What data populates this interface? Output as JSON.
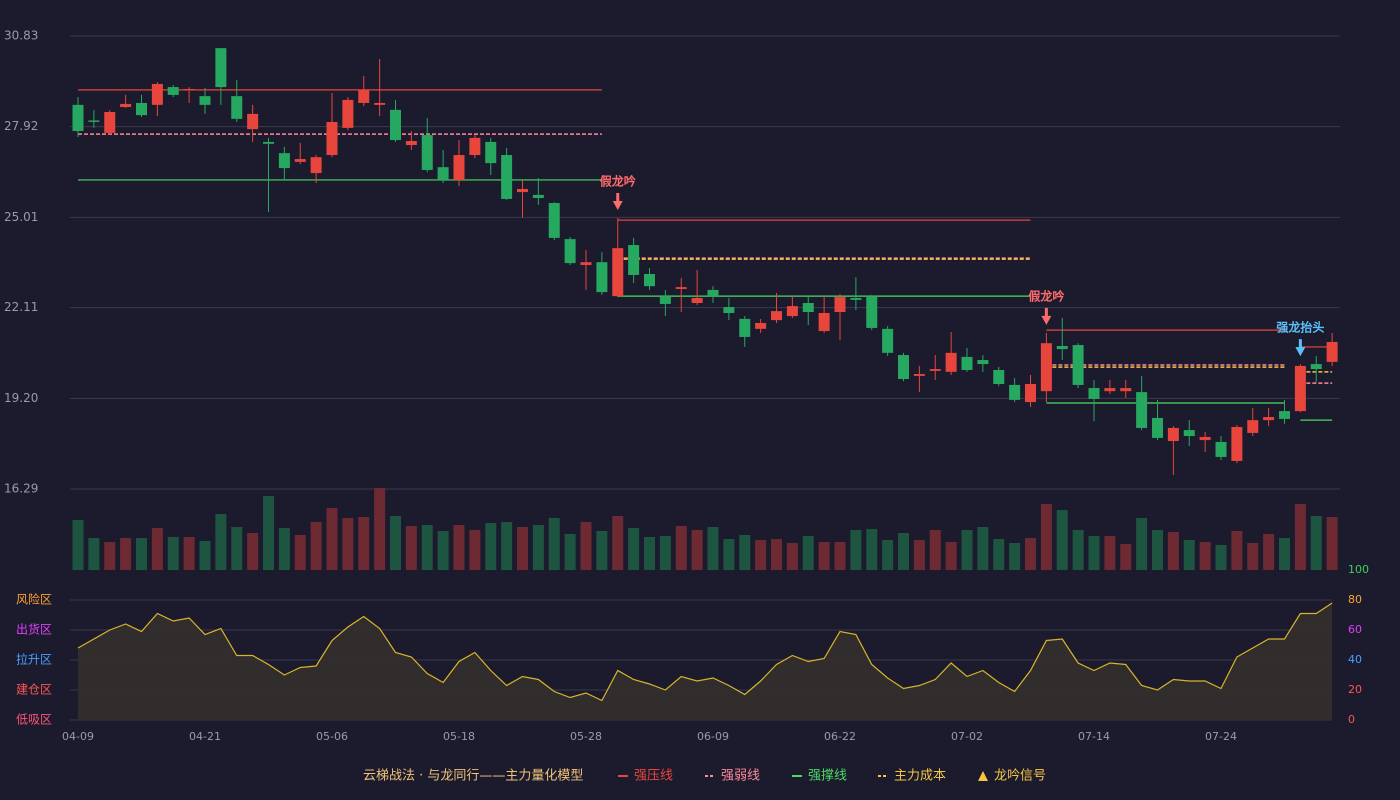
{
  "chart_data": {
    "type": "candlestick",
    "title": "云梯战法 · 与龙同行——主力量化模型",
    "categories": [
      "04-09",
      null,
      null,
      null,
      null,
      null,
      null,
      null,
      "04-21",
      null,
      null,
      null,
      null,
      null,
      null,
      null,
      "05-06",
      null,
      null,
      null,
      null,
      null,
      null,
      null,
      "05-18",
      null,
      null,
      null,
      null,
      null,
      null,
      null,
      "05-28",
      null,
      null,
      null,
      null,
      null,
      null,
      null,
      "06-09",
      null,
      null,
      null,
      null,
      null,
      null,
      null,
      "06-22",
      null,
      null,
      null,
      null,
      null,
      null,
      null,
      "07-02",
      null,
      null,
      null,
      null,
      null,
      null,
      null,
      "07-14",
      null,
      null,
      null,
      null,
      null,
      null,
      null,
      "07-24",
      null,
      null,
      null,
      null,
      null,
      null,
      null
    ],
    "ylim": [
      16.29,
      30.83
    ],
    "yticks": [
      30.83,
      27.92,
      25.01,
      22.11,
      {
        "value": 19.2,
        "label": "19.20"
      },
      16.29
    ],
    "grid": true,
    "up_color": "#e8453c",
    "down_color": "#27a861",
    "open": [
      28.62,
      28.12,
      27.72,
      28.55,
      28.68,
      28.62,
      29.19,
      29.09,
      28.9,
      30.44,
      28.9,
      27.84,
      27.43,
      27.07,
      26.79,
      26.43,
      27.01,
      27.88,
      28.68,
      28.62,
      28.46,
      27.33,
      27.65,
      26.62,
      26.21,
      27.01,
      27.43,
      27.01,
      25.82,
      25.73,
      25.47,
      24.31,
      23.48,
      23.57,
      22.48,
      24.12,
      23.19,
      22.48,
      22.71,
      22.26,
      22.68,
      22.13,
      21.75,
      21.43,
      21.71,
      21.84,
      22.26,
      21.36,
      21.97,
      22.42,
      22.48,
      21.43,
      20.59,
      19.92,
      20.08,
      20.05,
      20.53,
      20.43,
      20.11,
      19.63,
      19.08,
      19.43,
      20.88,
      20.91,
      19.53,
      19.43,
      19.43,
      19.4,
      18.57,
      17.83,
      18.18,
      17.86,
      17.8,
      17.19,
      18.09,
      18.5,
      18.79,
      18.79,
      20.3,
      20.37
    ],
    "high": [
      28.87,
      28.45,
      28.45,
      28.94,
      28.94,
      29.35,
      29.26,
      29.19,
      29.16,
      30.44,
      29.42,
      28.62,
      27.56,
      27.27,
      27.4,
      27.01,
      29.0,
      28.87,
      29.55,
      30.09,
      28.78,
      27.78,
      28.2,
      27.17,
      27.49,
      27.65,
      27.56,
      27.24,
      26.21,
      26.27,
      25.5,
      24.38,
      23.96,
      23.89,
      24.99,
      24.35,
      23.38,
      22.68,
      23.06,
      23.32,
      22.8,
      22.42,
      21.84,
      21.75,
      22.58,
      22.48,
      22.48,
      22.48,
      22.55,
      23.09,
      22.52,
      21.52,
      20.66,
      20.24,
      20.59,
      21.33,
      20.82,
      20.59,
      20.21,
      19.85,
      19.95,
      21.3,
      21.78,
      20.97,
      19.79,
      19.79,
      19.79,
      19.92,
      19.15,
      18.31,
      18.5,
      18.12,
      17.99,
      18.34,
      18.89,
      18.89,
      19.15,
      20.3,
      20.56,
      21.3
    ],
    "low": [
      27.59,
      27.88,
      27.65,
      28.52,
      28.23,
      28.26,
      28.87,
      28.68,
      28.33,
      28.62,
      28.07,
      27.43,
      25.18,
      26.21,
      26.72,
      26.11,
      26.94,
      27.81,
      28.58,
      28.26,
      27.43,
      27.17,
      26.46,
      26.11,
      26.01,
      26.91,
      26.37,
      25.57,
      25.0,
      25.41,
      24.28,
      23.48,
      22.68,
      22.52,
      22.45,
      22.9,
      22.68,
      21.84,
      21.97,
      22.19,
      22.26,
      21.71,
      20.85,
      21.3,
      21.62,
      21.78,
      21.55,
      21.3,
      21.07,
      22.03,
      21.39,
      20.56,
      19.75,
      19.4,
      19.79,
      19.95,
      20.05,
      20.05,
      19.59,
      19.08,
      18.92,
      19.08,
      20.43,
      19.53,
      18.47,
      19.34,
      19.21,
      18.18,
      17.86,
      16.74,
      17.67,
      17.48,
      17.22,
      17.12,
      17.99,
      18.31,
      18.38,
      18.76,
      19.72,
      20.24
    ],
    "close": [
      27.78,
      28.08,
      28.39,
      28.65,
      28.29,
      29.29,
      28.94,
      29.13,
      28.62,
      29.19,
      28.17,
      28.33,
      27.37,
      26.59,
      26.88,
      26.94,
      28.07,
      28.78,
      29.1,
      28.68,
      27.49,
      27.46,
      26.53,
      26.21,
      27.01,
      27.56,
      26.75,
      25.6,
      25.92,
      25.63,
      24.35,
      23.54,
      23.57,
      22.61,
      24.02,
      23.16,
      22.8,
      22.23,
      22.77,
      22.42,
      22.48,
      21.94,
      21.17,
      21.62,
      22.0,
      22.16,
      21.97,
      21.94,
      22.45,
      22.36,
      21.46,
      20.66,
      19.82,
      19.98,
      20.14,
      20.66,
      20.11,
      20.3,
      19.66,
      19.15,
      19.66,
      20.97,
      20.78,
      19.63,
      19.18,
      19.53,
      19.53,
      18.25,
      17.93,
      18.25,
      17.99,
      17.96,
      17.32,
      18.28,
      18.5,
      18.6,
      18.54,
      20.24,
      20.14,
      21.01
    ],
    "volume": {
      "up_color": "#6e2a33",
      "down_color": "#1d5540",
      "values": [
        50,
        32,
        28,
        32,
        32,
        42,
        33,
        33,
        29,
        56,
        43,
        37,
        74,
        42,
        35,
        48,
        62,
        52,
        53,
        82,
        54,
        44,
        45,
        39,
        45,
        40,
        47,
        48,
        43,
        45,
        52,
        36,
        48,
        39,
        54,
        42,
        33,
        34,
        44,
        40,
        43,
        31,
        35,
        30,
        31,
        27,
        34,
        28,
        28,
        40,
        41,
        30,
        37,
        30,
        40,
        28,
        40,
        43,
        31,
        27,
        32,
        66,
        60,
        40,
        34,
        34,
        26,
        52,
        40,
        38,
        30,
        28,
        25,
        39,
        27,
        36,
        32,
        66,
        54,
        53
      ]
    },
    "levels": [
      {
        "name": "强压线",
        "color": "#e8453c",
        "dash": false,
        "values": [
          29.1,
          29.1,
          29.1,
          29.1,
          29.1,
          29.1,
          29.1,
          29.1,
          29.1,
          29.1,
          29.1,
          29.1,
          29.1,
          29.1,
          29.1,
          29.1,
          29.1,
          29.1,
          29.1,
          29.1,
          29.1,
          29.1,
          29.1,
          29.1,
          29.1,
          29.1,
          29.1,
          29.1,
          29.1,
          29.1,
          29.1,
          29.1,
          29.1,
          29.1,
          24.92,
          24.92,
          24.92,
          24.92,
          24.92,
          24.92,
          24.92,
          24.92,
          24.92,
          24.92,
          24.92,
          24.92,
          24.92,
          24.92,
          24.92,
          24.92,
          24.92,
          24.92,
          24.92,
          24.92,
          24.92,
          24.92,
          24.92,
          24.92,
          24.92,
          24.92,
          24.92,
          21.39,
          21.39,
          21.39,
          21.39,
          21.39,
          21.39,
          21.39,
          21.39,
          21.39,
          21.39,
          21.39,
          21.39,
          21.39,
          21.39,
          21.39,
          21.39,
          20.85,
          20.85,
          20.85
        ]
      },
      {
        "name": "强弱线",
        "color": "#ff8a9a",
        "dash": true,
        "values": [
          27.68,
          27.68,
          27.68,
          27.68,
          27.68,
          27.68,
          27.68,
          27.68,
          27.68,
          27.68,
          27.68,
          27.68,
          27.68,
          27.68,
          27.68,
          27.68,
          27.68,
          27.68,
          27.68,
          27.68,
          27.68,
          27.68,
          27.68,
          27.68,
          27.68,
          27.68,
          27.68,
          27.68,
          27.68,
          27.68,
          27.68,
          27.68,
          27.68,
          27.68,
          23.7,
          23.7,
          23.7,
          23.7,
          23.7,
          23.7,
          23.7,
          23.7,
          23.7,
          23.7,
          23.7,
          23.7,
          23.7,
          23.7,
          23.7,
          23.7,
          23.7,
          23.7,
          23.7,
          23.7,
          23.7,
          23.7,
          23.7,
          23.7,
          23.7,
          23.7,
          23.7,
          20.27,
          20.27,
          20.27,
          20.27,
          20.27,
          20.27,
          20.27,
          20.27,
          20.27,
          20.27,
          20.27,
          20.27,
          20.27,
          20.27,
          20.27,
          20.27,
          19.69,
          19.69,
          19.69
        ]
      },
      {
        "name": "强撑线",
        "color": "#4cd964",
        "dash": false,
        "values": [
          26.21,
          26.21,
          26.21,
          26.21,
          26.21,
          26.21,
          26.21,
          26.21,
          26.21,
          26.21,
          26.21,
          26.21,
          26.21,
          26.21,
          26.21,
          26.21,
          26.21,
          26.21,
          26.21,
          26.21,
          26.21,
          26.21,
          26.21,
          26.21,
          26.21,
          26.21,
          26.21,
          26.21,
          26.21,
          26.21,
          26.21,
          26.21,
          26.21,
          26.21,
          22.48,
          22.48,
          22.48,
          22.48,
          22.48,
          22.48,
          22.48,
          22.48,
          22.48,
          22.48,
          22.48,
          22.48,
          22.48,
          22.48,
          22.48,
          22.48,
          22.48,
          22.48,
          22.48,
          22.48,
          22.48,
          22.48,
          22.48,
          22.48,
          22.48,
          22.48,
          22.48,
          19.05,
          19.05,
          19.05,
          19.05,
          19.05,
          19.05,
          19.05,
          19.05,
          19.05,
          19.05,
          19.05,
          19.05,
          19.05,
          19.05,
          19.05,
          19.05,
          18.5,
          18.5,
          18.5
        ]
      },
      {
        "name": "主力成本",
        "color": "#f5c542",
        "dash": true,
        "values": [
          null,
          null,
          null,
          null,
          null,
          null,
          null,
          null,
          null,
          null,
          null,
          null,
          null,
          null,
          null,
          null,
          null,
          null,
          null,
          null,
          null,
          null,
          null,
          null,
          null,
          null,
          null,
          null,
          null,
          null,
          null,
          null,
          null,
          null,
          23.67,
          23.67,
          23.67,
          23.67,
          23.67,
          23.67,
          23.67,
          23.67,
          23.67,
          23.67,
          23.67,
          23.67,
          23.67,
          23.67,
          23.67,
          23.67,
          23.67,
          23.67,
          23.67,
          23.67,
          23.67,
          23.67,
          23.67,
          23.67,
          23.67,
          23.67,
          23.67,
          20.2,
          20.2,
          20.2,
          20.2,
          20.2,
          20.2,
          20.2,
          20.2,
          20.2,
          20.2,
          20.2,
          20.2,
          20.2,
          20.2,
          20.2,
          20.2,
          20.05,
          20.05,
          20.05
        ]
      }
    ],
    "signals": [
      null,
      null,
      null,
      null,
      null,
      null,
      null,
      null,
      null,
      null,
      null,
      null,
      null,
      null,
      null,
      null,
      null,
      null,
      null,
      null,
      null,
      null,
      null,
      null,
      null,
      null,
      null,
      null,
      null,
      null,
      null,
      null,
      null,
      null,
      {
        "label": "假龙吟",
        "color": "#ff6b6b"
      },
      null,
      null,
      null,
      null,
      null,
      null,
      null,
      null,
      null,
      null,
      null,
      null,
      null,
      null,
      null,
      null,
      null,
      null,
      null,
      null,
      null,
      null,
      null,
      null,
      null,
      null,
      {
        "label": "假龙吟",
        "color": "#ff6b6b"
      },
      null,
      null,
      null,
      null,
      null,
      null,
      null,
      null,
      null,
      null,
      null,
      null,
      null,
      null,
      null,
      {
        "label": "强龙抬头",
        "color": "#5bc0f8"
      },
      null,
      null
    ],
    "signal_legend": {
      "name": "龙吟信号",
      "color": "#f5c542"
    },
    "indicator": {
      "color": "#d8b52a",
      "fill": "#34302c",
      "values": [
        48,
        54,
        60,
        64,
        59,
        71,
        66,
        68,
        57,
        61,
        43,
        43,
        37,
        30,
        35,
        36,
        53,
        62,
        69,
        61,
        45,
        42,
        31,
        25,
        39,
        45,
        33,
        23,
        29,
        27,
        19,
        15,
        18,
        13,
        33,
        27,
        24,
        20,
        29,
        26,
        28,
        23,
        17,
        26,
        37,
        43,
        39,
        41,
        59,
        57,
        37,
        28,
        21,
        23,
        27,
        38,
        29,
        33,
        25,
        19,
        33,
        53,
        54,
        38,
        33,
        38,
        37,
        23,
        20,
        27,
        26,
        26,
        21,
        42,
        48,
        54,
        54,
        71,
        71,
        78
      ],
      "ylim": [
        0,
        100
      ],
      "yticks": [
        0,
        20,
        40,
        60,
        80,
        100
      ],
      "ytick_colors": [
        "#ff5555",
        "#ff5555",
        "#4a9eff",
        "#e040fb",
        "#ffa030",
        "#3ad15a"
      ],
      "zones": [
        {
          "label": "低吸区",
          "value": 0,
          "color": "#ff5577"
        },
        {
          "label": "建仓区",
          "value": 20,
          "color": "#ff5555"
        },
        {
          "label": "拉升区",
          "value": 40,
          "color": "#4a9eff"
        },
        {
          "label": "出货区",
          "value": 60,
          "color": "#e040fb"
        },
        {
          "label": "风险区",
          "value": 80,
          "color": "#ffa030"
        }
      ]
    }
  }
}
